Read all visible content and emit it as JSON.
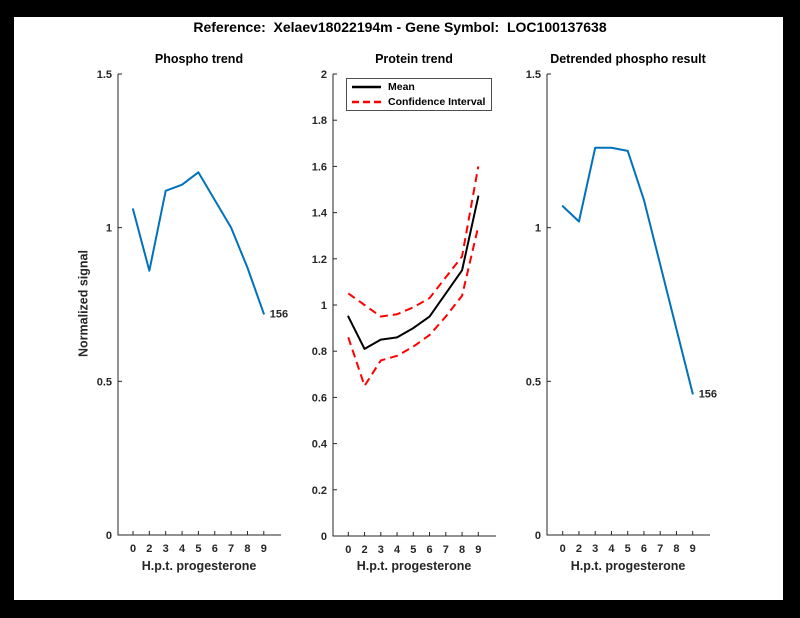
{
  "figure": {
    "title": "Reference:  Xelaev18022194m - Gene Symbol:  LOC100137638",
    "background_color": "#000000",
    "canvas_color": "#ffffff"
  },
  "axes_common": {
    "x_tick_labels": [
      "0",
      "2",
      "3",
      "4",
      "5",
      "6",
      "7",
      "8",
      "9"
    ],
    "xlabel": "H.p.t. progesterone",
    "axis_color": "#262626",
    "text_color": "#262626"
  },
  "colors": {
    "line_blue": "#0072BD",
    "ci_red": "#ff0000",
    "mean_black": "#000000"
  },
  "chart_data": [
    {
      "type": "line",
      "title": "Phospho trend",
      "xlabel": "H.p.t. progesterone",
      "ylabel": "Normalized signal",
      "x": [
        0,
        2,
        3,
        4,
        5,
        6,
        7,
        8,
        9
      ],
      "ylim": [
        0,
        1.5
      ],
      "yticks": [
        0,
        0.5,
        1,
        1.5
      ],
      "ytick_labels": [
        "0",
        "0.5",
        "1",
        "1.5"
      ],
      "grid": false,
      "end_label": "156",
      "series": [
        {
          "name": "phospho-trend",
          "color": "#0072BD",
          "style": "solid",
          "width": 2,
          "values": [
            1.06,
            0.86,
            1.12,
            1.14,
            1.18,
            1.09,
            1.0,
            0.87,
            0.72
          ]
        }
      ]
    },
    {
      "type": "line",
      "title": "Protein trend",
      "xlabel": "H.p.t. progesterone",
      "ylabel": "",
      "x": [
        0,
        2,
        3,
        4,
        5,
        6,
        7,
        8,
        9
      ],
      "ylim": [
        0,
        2
      ],
      "yticks": [
        0,
        0.2,
        0.4,
        0.6,
        0.8,
        1,
        1.2,
        1.4,
        1.6,
        1.8,
        2
      ],
      "ytick_labels": [
        "0",
        "0.2",
        "0.4",
        "0.6",
        "0.8",
        "1",
        "1.2",
        "1.4",
        "1.6",
        "1.8",
        "2"
      ],
      "grid": false,
      "legend_labels": [
        "Mean",
        "Confidence Interval"
      ],
      "legend_position": "top-left",
      "series": [
        {
          "name": "mean",
          "color": "#000000",
          "style": "solid",
          "width": 2,
          "values": [
            0.95,
            0.81,
            0.85,
            0.86,
            0.9,
            0.95,
            1.05,
            1.15,
            1.47
          ]
        },
        {
          "name": "ci-upper",
          "color": "#ff0000",
          "style": "dashed",
          "width": 2,
          "values": [
            1.05,
            1.0,
            0.95,
            0.96,
            0.99,
            1.03,
            1.12,
            1.21,
            1.6
          ]
        },
        {
          "name": "ci-lower",
          "color": "#ff0000",
          "style": "dashed",
          "width": 2,
          "values": [
            0.86,
            0.65,
            0.76,
            0.78,
            0.82,
            0.87,
            0.95,
            1.04,
            1.34
          ]
        }
      ]
    },
    {
      "type": "line",
      "title": "Detrended phospho result",
      "xlabel": "H.p.t. progesterone",
      "ylabel": "",
      "x": [
        0,
        2,
        3,
        4,
        5,
        6,
        7,
        8,
        9
      ],
      "ylim": [
        0,
        1.5
      ],
      "yticks": [
        0,
        0.5,
        1,
        1.5
      ],
      "ytick_labels": [
        "0",
        "0.5",
        "1",
        "1.5"
      ],
      "grid": false,
      "end_label": "156",
      "series": [
        {
          "name": "detrended-phospho",
          "color": "#0072BD",
          "style": "solid",
          "width": 2,
          "values": [
            1.07,
            1.02,
            1.26,
            1.26,
            1.25,
            1.09,
            0.88,
            0.67,
            0.46
          ]
        }
      ]
    }
  ]
}
